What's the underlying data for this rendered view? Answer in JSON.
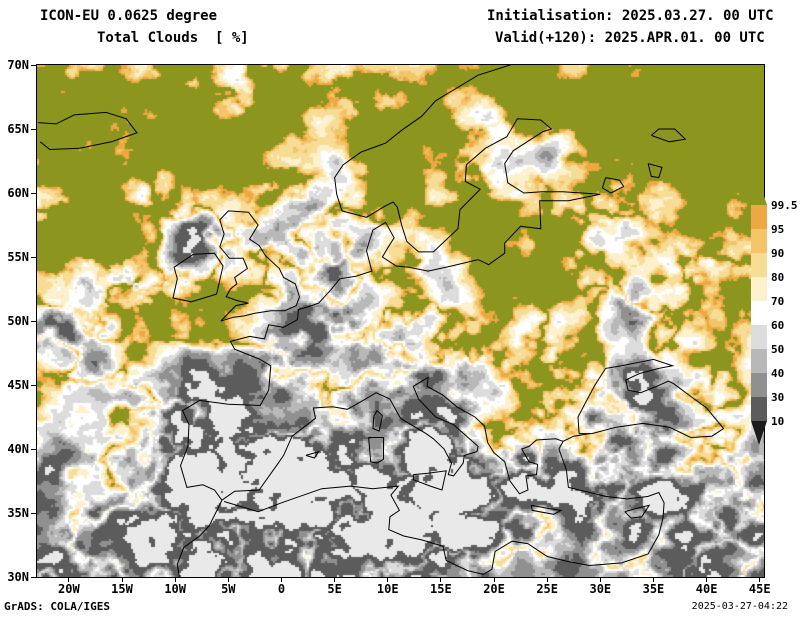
{
  "header": {
    "model": "ICON-EU 0.0625 degree",
    "variable": "Total Clouds  [ %]",
    "init": "Initialisation: 2025.03.27. 00 UTC",
    "valid": "Valid(+120): 2025.APR.01. 00 UTC"
  },
  "footer": {
    "grads": "GrADS: COLA/IGES",
    "timestamp": "2025-03-27-04:22"
  },
  "axes": {
    "lat_labels": [
      "70N",
      "65N",
      "60N",
      "55N",
      "50N",
      "45N",
      "40N",
      "35N",
      "30N"
    ],
    "lon_labels": [
      "20W",
      "15W",
      "10W",
      "5W",
      "0",
      "5E",
      "10E",
      "15E",
      "20E",
      "25E",
      "30E",
      "35E",
      "40E",
      "45E"
    ]
  },
  "legend": {
    "labels": [
      "99.5",
      "95",
      "90",
      "80",
      "70",
      "60",
      "50",
      "40",
      "30",
      "10"
    ],
    "colors": [
      "#8c961e",
      "#eda843",
      "#f3c468",
      "#f7dc96",
      "#fcf0cd",
      "#ffffff",
      "#dcdcdc",
      "#b8b8b8",
      "#909090",
      "#5c5c5c",
      "#1c1c1c"
    ],
    "below_min_color": "#e9e9e9"
  },
  "chart_data": {
    "type": "heatmap",
    "title": "Total Clouds [ %]",
    "model": "ICON-EU 0.0625 degree",
    "init_time": "2025.03.27. 00 UTC",
    "valid_time": "2025.APR.01. 00 UTC",
    "forecast_hours": 120,
    "units": "%",
    "levels": [
      99.5,
      95,
      90,
      80,
      70,
      60,
      50,
      40,
      30,
      10
    ],
    "level_colors_top_to_bottom": [
      "#8c961e",
      "#eda843",
      "#f3c468",
      "#f7dc96",
      "#fcf0cd",
      "#ffffff",
      "#dcdcdc",
      "#b8b8b8",
      "#909090",
      "#5c5c5c",
      "#1c1c1c"
    ],
    "lat_range": [
      "30N",
      "70N"
    ],
    "lon_range": [
      "20W",
      "45E"
    ],
    "lat_ticks": [
      "70N",
      "65N",
      "60N",
      "55N",
      "50N",
      "45N",
      "40N",
      "35N",
      "30N"
    ],
    "lon_ticks": [
      "20W",
      "15W",
      "10W",
      "5W",
      "0",
      "5E",
      "10E",
      "15E",
      "20E",
      "25E",
      "30E",
      "35E",
      "40E",
      "45E"
    ],
    "legend_boundary_labels": [
      "99.5",
      "95",
      "90",
      "80",
      "70",
      "60",
      "50",
      "40",
      "30",
      "10"
    ]
  }
}
